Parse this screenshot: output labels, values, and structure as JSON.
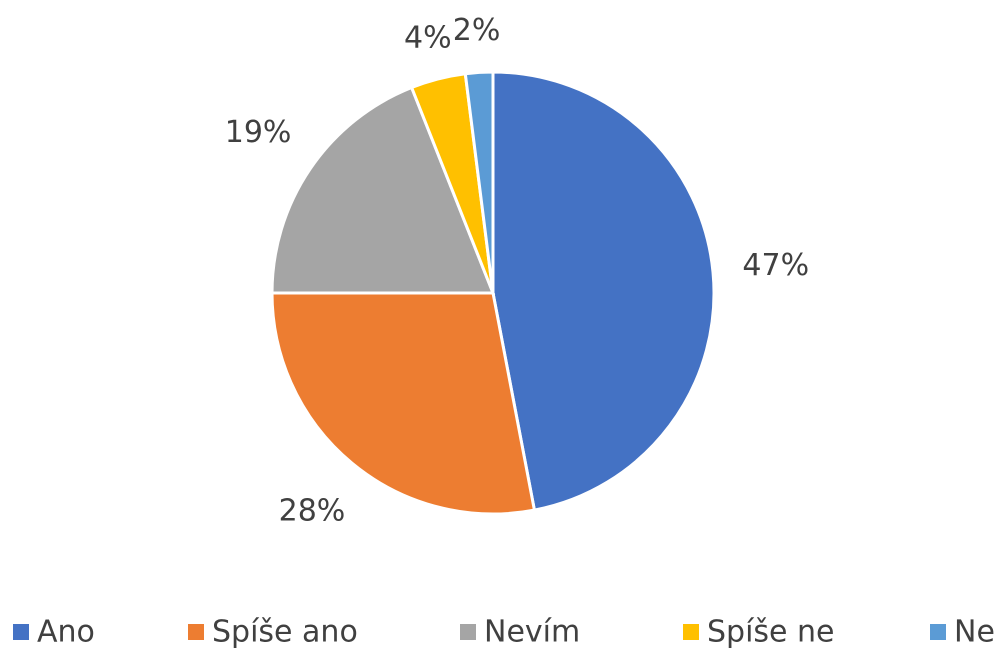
{
  "chart_data": {
    "type": "pie",
    "categories": [
      "Ano",
      "Spíše ano",
      "Nevím",
      "Spíše ne",
      "Ne"
    ],
    "values": [
      47,
      28,
      19,
      4,
      2
    ],
    "value_labels": [
      "47%",
      "28%",
      "19%",
      "4%",
      "2%"
    ],
    "colors": [
      "#4472c4",
      "#ed7d31",
      "#a5a5a5",
      "#ffc000",
      "#5b9bd5"
    ],
    "legend": "bottom"
  }
}
